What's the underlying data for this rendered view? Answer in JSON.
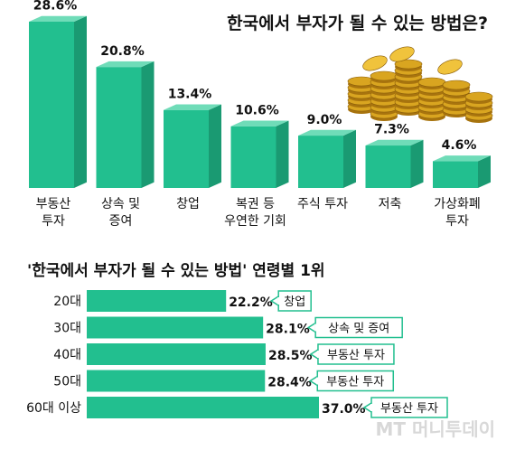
{
  "chart_data": [
    {
      "type": "bar",
      "title": "한국에서 부자가 될 수 있는 방법은?",
      "categories": [
        "부동산\n투자",
        "상속 및\n증여",
        "창업",
        "복권 등\n우연한 기회",
        "주식 투자",
        "저축",
        "가상화폐\n투자"
      ],
      "values": [
        28.6,
        20.8,
        13.4,
        10.6,
        9.0,
        7.3,
        4.6
      ],
      "value_labels": [
        "28.6%",
        "20.8%",
        "13.4%",
        "10.6%",
        "9.0%",
        "7.3%",
        "4.6%"
      ],
      "ylim": [
        0,
        28.6
      ],
      "grid": false
    },
    {
      "type": "bar",
      "orientation": "horizontal",
      "title": "'한국에서 부자가 될 수 있는 방법' 연령별 1위",
      "categories": [
        "20대",
        "30대",
        "40대",
        "50대",
        "60대 이상"
      ],
      "values": [
        22.2,
        28.1,
        28.5,
        28.4,
        37.0
      ],
      "value_labels": [
        "22.2%",
        "28.1%",
        "28.5%",
        "28.4%",
        "37.0%"
      ],
      "callouts": [
        "창업",
        "상속 및 증여",
        "부동산 투자",
        "부동산 투자",
        "부동산 투자"
      ],
      "xlim": [
        0,
        37.0
      ],
      "grid": false
    }
  ],
  "colors": {
    "bar_front": "#22bf8f",
    "bar_side": "#1a9a72",
    "bar_top": "#6fdcb8",
    "hbar": "#22bf8f",
    "gold": "#d9a520",
    "text": "#111111"
  },
  "decoration": {
    "image": "gold-coins-icon"
  },
  "watermark": "MT 머니투데이"
}
